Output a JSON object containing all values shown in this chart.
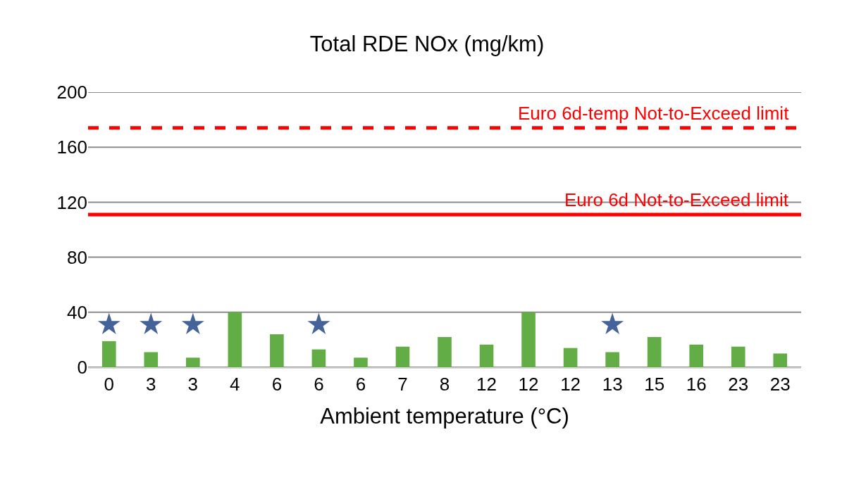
{
  "chart_data": {
    "type": "bar",
    "title": "Total RDE NOx (mg/km)",
    "xlabel": "Ambient temperature (°C)",
    "categories": [
      "0",
      "3",
      "3",
      "4",
      "6",
      "6",
      "6",
      "7",
      "8",
      "12",
      "12",
      "12",
      "13",
      "15",
      "16",
      "23",
      "23"
    ],
    "series": [
      {
        "color": "#63ad46",
        "values": [
          19,
          11,
          7,
          40,
          24,
          13,
          7,
          15,
          22,
          16.5,
          40,
          14,
          11,
          22,
          16.5,
          15,
          10
        ]
      },
      {
        "type": "scatter",
        "color": "#44639a",
        "marker": "star",
        "values": [
          31,
          31,
          31,
          null,
          null,
          31,
          null,
          null,
          null,
          null,
          null,
          null,
          31,
          null,
          null,
          null,
          null
        ]
      }
    ],
    "ylim": [
      0,
      200
    ],
    "yticks": [
      0,
      40,
      80,
      120,
      160,
      200
    ],
    "grid": "y",
    "legend": false,
    "ref_lines": [
      {
        "axis": "y",
        "value": 174,
        "label": "Euro 6d-temp Not-to-Exceed limit",
        "color": "#ff0000",
        "line_style": "dashed"
      },
      {
        "axis": "y",
        "value": 111,
        "label": "Euro 6d Not-to-Exceed limit",
        "color": "#ff0000",
        "line_style": "solid"
      }
    ]
  }
}
